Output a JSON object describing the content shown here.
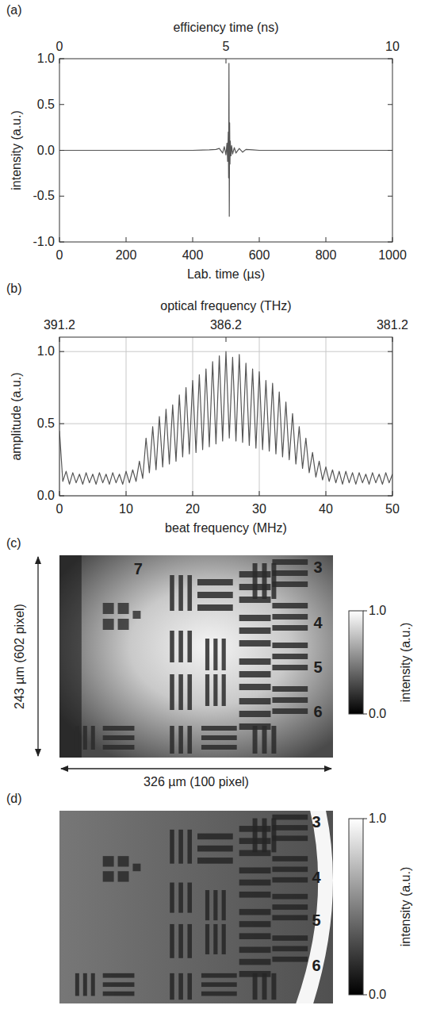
{
  "chart_data": [
    {
      "type": "line",
      "panel": "(a)",
      "xlabel": "Lab. time (µs)",
      "x2label": "efficiency time (ns)",
      "ylabel": "intensity (a.u.)",
      "xlim": [
        0,
        1000
      ],
      "xticks": [
        0,
        200,
        400,
        600,
        800,
        1000
      ],
      "x2lim": [
        0,
        10
      ],
      "x2ticks": [
        0,
        5,
        10
      ],
      "ylim": [
        -1,
        1
      ],
      "yticks": [
        {
          "value": -1,
          "label": "-1.0"
        },
        -0.5,
        {
          "value": 0,
          "label": "0.0"
        },
        0.5,
        {
          "value": 1,
          "label": "1.0"
        }
      ],
      "grid": false,
      "color": "#555555",
      "x": [
        0,
        100,
        200,
        300,
        400,
        450,
        470,
        480,
        490,
        495,
        500,
        503,
        505,
        507,
        508,
        509,
        510,
        511,
        512,
        513,
        515,
        517,
        520,
        525,
        530,
        540,
        550,
        560,
        580,
        600,
        700,
        800,
        900,
        1000
      ],
      "values": [
        0,
        0,
        0,
        0,
        0,
        0.005,
        0.01,
        0.02,
        -0.03,
        0.04,
        -0.05,
        0.08,
        -0.12,
        0.2,
        -0.3,
        0.95,
        -0.72,
        0.3,
        -0.15,
        0.1,
        -0.06,
        0.05,
        -0.04,
        0.03,
        -0.03,
        0.02,
        -0.02,
        0.01,
        0.005,
        0,
        0,
        0,
        0,
        0
      ]
    },
    {
      "type": "line",
      "panel": "(b)",
      "xlabel": "beat frequency (MHz)",
      "x2label": "optical frequency (THz)",
      "ylabel": "amplitude (a.u.)",
      "xlim": [
        0,
        50
      ],
      "xticks": [
        0,
        10,
        20,
        30,
        40,
        50
      ],
      "x2lim": [
        391.2,
        381.2
      ],
      "x2ticks": [
        391.2,
        386.2,
        381.2
      ],
      "ylim": [
        0,
        1.1
      ],
      "yticks": [
        {
          "value": 0,
          "label": "0.0"
        },
        0.5,
        {
          "value": 1,
          "label": "1.0"
        }
      ],
      "grid": true,
      "color": "#555555",
      "x": [
        0,
        0.5,
        1,
        1.5,
        2,
        2.5,
        3,
        3.5,
        4,
        4.5,
        5,
        5.5,
        6,
        6.5,
        7,
        7.5,
        8,
        8.5,
        9,
        9.5,
        10,
        10.5,
        11,
        11.5,
        12,
        12.5,
        13,
        13.5,
        14,
        14.5,
        15,
        15.5,
        16,
        16.5,
        17,
        17.5,
        18,
        18.5,
        19,
        19.5,
        20,
        20.5,
        21,
        21.5,
        22,
        22.5,
        23,
        23.5,
        24,
        24.5,
        25,
        25.5,
        26,
        26.5,
        27,
        27.5,
        28,
        28.5,
        29,
        29.5,
        30,
        30.5,
        31,
        31.5,
        32,
        32.5,
        33,
        33.5,
        34,
        34.5,
        35,
        35.5,
        36,
        36.5,
        37,
        37.5,
        38,
        38.5,
        39,
        39.5,
        40,
        40.5,
        41,
        41.5,
        42,
        42.5,
        43,
        43.5,
        44,
        44.5,
        45,
        45.5,
        46,
        46.5,
        47,
        47.5,
        48,
        48.5,
        49,
        49.5,
        50
      ],
      "values": [
        0.45,
        0.1,
        0.17,
        0.08,
        0.16,
        0.09,
        0.15,
        0.08,
        0.16,
        0.09,
        0.15,
        0.08,
        0.16,
        0.09,
        0.15,
        0.08,
        0.16,
        0.09,
        0.15,
        0.08,
        0.17,
        0.09,
        0.18,
        0.1,
        0.24,
        0.12,
        0.4,
        0.16,
        0.48,
        0.18,
        0.55,
        0.2,
        0.6,
        0.22,
        0.63,
        0.24,
        0.7,
        0.27,
        0.75,
        0.29,
        0.8,
        0.3,
        0.84,
        0.32,
        0.88,
        0.34,
        0.93,
        0.36,
        0.97,
        0.38,
        1.0,
        0.4,
        0.96,
        0.38,
        0.98,
        0.37,
        0.92,
        0.35,
        0.88,
        0.33,
        0.86,
        0.32,
        0.8,
        0.31,
        0.78,
        0.29,
        0.72,
        0.27,
        0.65,
        0.25,
        0.57,
        0.22,
        0.48,
        0.19,
        0.4,
        0.16,
        0.3,
        0.13,
        0.24,
        0.11,
        0.2,
        0.1,
        0.18,
        0.09,
        0.17,
        0.08,
        0.17,
        0.09,
        0.16,
        0.08,
        0.16,
        0.09,
        0.15,
        0.08,
        0.16,
        0.09,
        0.15,
        0.08,
        0.16,
        0.09,
        0.15
      ]
    },
    {
      "type": "image",
      "panel": "(c)",
      "height_label": "243 µm (602 pixel)",
      "width_label": "326 µm (100 pixel)",
      "annotations": [
        "7",
        "3",
        "4",
        "5",
        "6"
      ],
      "colorbar_label": "intensity (a.u.)",
      "colorbar_lim": [
        0,
        1
      ],
      "colorbar_ticks": [
        {
          "value": 0,
          "label": "0.0"
        },
        {
          "value": 1,
          "label": "1.0"
        }
      ]
    },
    {
      "type": "image",
      "panel": "(d)",
      "annotations": [
        "3",
        "4",
        "5",
        "6"
      ],
      "colorbar_label": "intensity (a.u.)",
      "colorbar_lim": [
        0,
        1
      ],
      "colorbar_ticks": [
        {
          "value": 0,
          "label": "0.0"
        },
        {
          "value": 1,
          "label": "1.0"
        }
      ]
    }
  ]
}
